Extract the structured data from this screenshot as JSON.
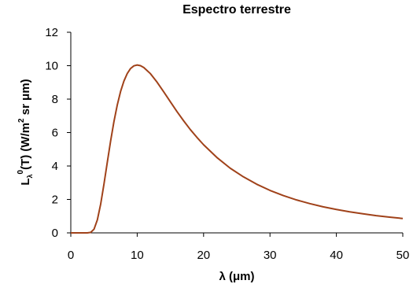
{
  "chart_data": {
    "type": "line",
    "title": "Espectro terrestre",
    "xlabel": "λ (μm)",
    "ylabel": {
      "prefix": "L",
      "sub": "λ",
      "sup": "0",
      "rest": "(T) (W/m",
      "unit_sup": "2",
      "tail": " sr μm)"
    },
    "xlim": [
      0,
      50
    ],
    "ylim": [
      0,
      12
    ],
    "xticks": [
      "0",
      "10",
      "20",
      "30",
      "40",
      "50"
    ],
    "yticks": [
      "0",
      "2",
      "4",
      "6",
      "8",
      "10",
      "12"
    ],
    "grid": false,
    "legend": "none",
    "series": [
      {
        "color": "#a0421a",
        "x": [
          0,
          1,
          2,
          2.5,
          3,
          3.5,
          4,
          4.5,
          5,
          5.5,
          6,
          6.5,
          7,
          7.5,
          8,
          8.5,
          9,
          9.5,
          10,
          10.5,
          11,
          12,
          13,
          14,
          15,
          16,
          17,
          18,
          19,
          20,
          22,
          24,
          26,
          28,
          30,
          32,
          34,
          36,
          38,
          40,
          42,
          44,
          46,
          48,
          50
        ],
        "y": [
          0,
          0,
          0.0,
          0.0,
          0.03,
          0.22,
          0.78,
          1.72,
          2.93,
          4.23,
          5.5,
          6.66,
          7.65,
          8.46,
          9.08,
          9.53,
          9.83,
          9.99,
          10.04,
          10.0,
          9.89,
          9.52,
          9.01,
          8.43,
          7.84,
          7.25,
          6.7,
          6.18,
          5.71,
          5.27,
          4.51,
          3.87,
          3.35,
          2.91,
          2.54,
          2.23,
          1.97,
          1.75,
          1.56,
          1.4,
          1.26,
          1.14,
          1.03,
          0.94,
          0.86
        ]
      }
    ]
  }
}
